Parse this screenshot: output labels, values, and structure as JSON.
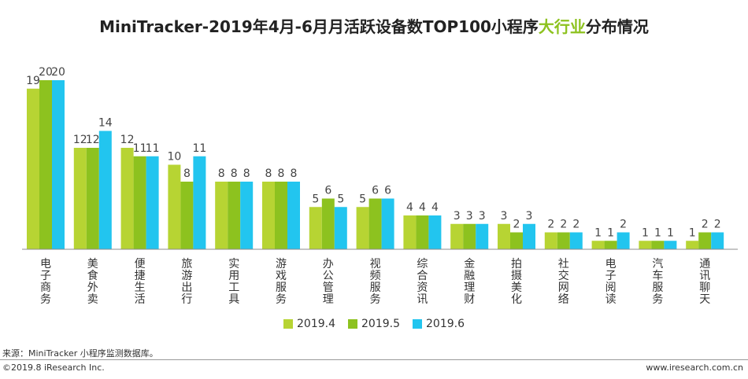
{
  "title": {
    "prefix": "MiniTracker-2019年4月-6月月活跃设备数TOP100小程序",
    "highlight": "大行业",
    "suffix": "分布情况"
  },
  "colors": [
    "#b7d433",
    "#8dc21f",
    "#22c5ef"
  ],
  "chart_data": {
    "type": "bar",
    "title": "MiniTracker-2019年4月-6月月活跃设备数TOP100小程序大行业分布情况",
    "categories": [
      "电子商务",
      "美食外卖",
      "便捷生活",
      "旅游出行",
      "实用工具",
      "游戏服务",
      "办公管理",
      "视频服务",
      "综合资讯",
      "金融理财",
      "拍摄美化",
      "社交网络",
      "电子阅读",
      "汽车服务",
      "通讯聊天"
    ],
    "series": [
      {
        "name": "2019.4",
        "values": [
          19,
          12,
          12,
          10,
          8,
          8,
          5,
          5,
          4,
          3,
          3,
          2,
          1,
          1,
          1
        ]
      },
      {
        "name": "2019.5",
        "values": [
          20,
          12,
          11,
          8,
          8,
          8,
          6,
          6,
          4,
          3,
          2,
          2,
          1,
          1,
          2
        ]
      },
      {
        "name": "2019.6",
        "values": [
          20,
          14,
          11,
          11,
          8,
          8,
          5,
          6,
          4,
          3,
          3,
          2,
          2,
          1,
          2
        ]
      }
    ],
    "ylim": [
      0,
      20
    ],
    "xlabel": "",
    "ylabel": "",
    "legend": "bottom-center"
  },
  "source": "来源：MiniTracker 小程序监测数据库。",
  "copyright": "©2019.8 iResearch Inc.",
  "website": "www.iresearch.com.cn"
}
